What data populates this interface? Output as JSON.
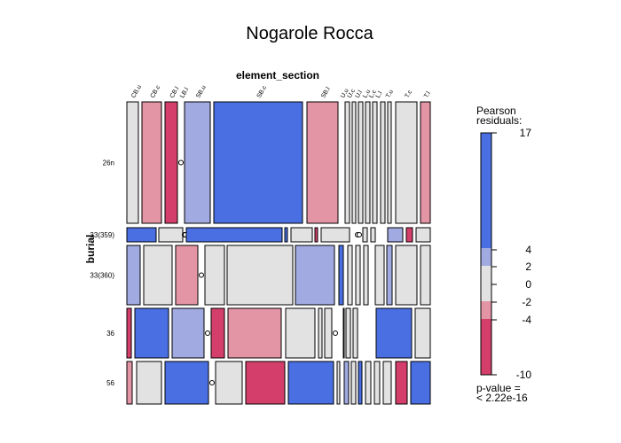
{
  "chart_data": {
    "type": "mosaic",
    "title": "Nogarole Rocca",
    "x_variable": "element_section",
    "y_variable": "burial",
    "columns": [
      "CB.u",
      "CB.c",
      "CB.l",
      "LB.l",
      "SB.u",
      "SB.c",
      "SB.l",
      "U.u",
      "U.c",
      "U.l",
      "L.u",
      "L.c",
      "L.l",
      "T.u",
      "T.c",
      "T.l"
    ],
    "rows": [
      "26n",
      "33(359)",
      "33(360)",
      "36",
      "56"
    ],
    "residual_classes": {
      "hi": "#4A6FE3",
      "mid_hi": "#A1AAE1",
      "neutral": "#E2E2E2",
      "mid_lo": "#E495A5",
      "lo": "#D33F6A"
    },
    "cells": {
      "26n": [
        "neutral",
        "mid_lo",
        "lo",
        "zero",
        "mid_hi",
        "hi",
        "mid_lo",
        "neutral",
        "neutral",
        "neutral",
        "neutral",
        "neutral",
        "neutral",
        "neutral",
        "neutral",
        "mid_lo"
      ],
      "33(359)": [
        "hi",
        "neutral",
        "zero",
        "zero",
        "hi",
        "hi",
        "neutral",
        "lo",
        "neutral",
        "zero",
        "zero",
        "neutral",
        "neutral",
        "mid_hi",
        "lo",
        "neutral"
      ],
      "33(360)": [
        "mid_hi",
        "neutral",
        "mid_lo",
        "zero",
        "neutral",
        "neutral",
        "mid_hi",
        "hi",
        "neutral",
        "neutral",
        "neutral",
        "neutral",
        "mid_hi",
        "neutral",
        "neutral",
        "mid_hi"
      ],
      "36": [
        "lo",
        "hi",
        "mid_hi",
        "zero",
        "lo",
        "mid_lo",
        "neutral",
        "neutral",
        "neutral",
        "zero",
        "hi",
        "neutral",
        "neutral",
        "hi",
        "neutral",
        "neutral"
      ],
      "56": [
        "mid_lo",
        "neutral",
        "hi",
        "zero",
        "neutral",
        "lo",
        "hi",
        "neutral",
        "mid_hi",
        "neutral",
        "hi",
        "neutral",
        "neutral",
        "neutral",
        "lo",
        "hi"
      ]
    },
    "legend": {
      "title_lines": [
        "Pearson",
        "residuals:"
      ],
      "tick_labels": [
        "17",
        "4",
        "2",
        "0",
        "-2",
        "-4",
        "-10"
      ],
      "footer_lines": [
        "p-value =",
        "< 2.22e-16"
      ]
    }
  }
}
